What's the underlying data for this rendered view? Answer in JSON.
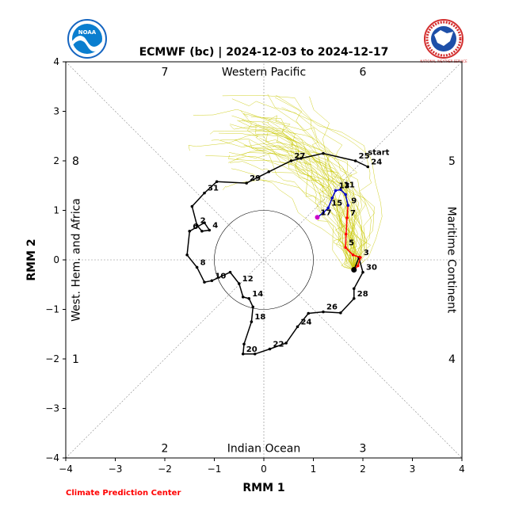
{
  "chart_data": {
    "type": "line",
    "title": "ECMWF (bc) | 2024-12-03 to 2024-12-17",
    "xlabel": "RMM 1",
    "ylabel": "RMM 2",
    "xlim": [
      -4,
      4
    ],
    "ylim": [
      -4,
      4
    ],
    "ticks": [
      "−4",
      "−3",
      "−2",
      "−1",
      "0",
      "1",
      "2",
      "3",
      "4"
    ],
    "phase_numbers": [
      {
        "label": "7",
        "x": -2,
        "y": 3.8
      },
      {
        "label": "6",
        "x": 2,
        "y": 3.8
      },
      {
        "label": "8",
        "x": -3.8,
        "y": 2
      },
      {
        "label": "5",
        "x": 3.8,
        "y": 2
      },
      {
        "label": "1",
        "x": -3.8,
        "y": -2
      },
      {
        "label": "4",
        "x": 3.8,
        "y": -2
      },
      {
        "label": "2",
        "x": -2,
        "y": -3.8
      },
      {
        "label": "3",
        "x": 2,
        "y": -3.8
      }
    ],
    "regions": {
      "top": "Western Pacific",
      "bottom": "Indian Ocean",
      "left": "West. Hem. and Africa",
      "right": "Maritime Continent"
    },
    "footer": "Climate Prediction Center",
    "start_label": "start",
    "observed": [
      {
        "x": 2.1,
        "y": 1.88,
        "label": "24"
      },
      {
        "x": 1.85,
        "y": 2.0,
        "label": "25"
      },
      {
        "x": 1.2,
        "y": 2.15,
        "label": ""
      },
      {
        "x": 0.75,
        "y": 2.05,
        "label": ""
      },
      {
        "x": 0.55,
        "y": 2.0,
        "label": "27"
      },
      {
        "x": 0.1,
        "y": 1.78,
        "label": ""
      },
      {
        "x": -0.35,
        "y": 1.55,
        "label": "29"
      },
      {
        "x": -0.95,
        "y": 1.58,
        "label": ""
      },
      {
        "x": -1.2,
        "y": 1.35,
        "label": "31"
      },
      {
        "x": -1.45,
        "y": 1.08,
        "label": ""
      },
      {
        "x": -1.35,
        "y": 0.7,
        "label": "2"
      },
      {
        "x": -1.25,
        "y": 0.58,
        "label": ""
      },
      {
        "x": -1.1,
        "y": 0.6,
        "label": "4"
      },
      {
        "x": -1.2,
        "y": 0.75,
        "label": ""
      },
      {
        "x": -1.5,
        "y": 0.58,
        "label": "6"
      },
      {
        "x": -1.55,
        "y": 0.1,
        "label": ""
      },
      {
        "x": -1.35,
        "y": -0.15,
        "label": "8"
      },
      {
        "x": -1.2,
        "y": -0.45,
        "label": ""
      },
      {
        "x": -1.05,
        "y": -0.42,
        "label": "10"
      },
      {
        "x": -0.68,
        "y": -0.25,
        "label": ""
      },
      {
        "x": -0.5,
        "y": -0.48,
        "label": "12"
      },
      {
        "x": -0.42,
        "y": -0.75,
        "label": ""
      },
      {
        "x": -0.3,
        "y": -0.78,
        "label": "14"
      },
      {
        "x": -0.22,
        "y": -0.95,
        "label": ""
      },
      {
        "x": -0.25,
        "y": -1.25,
        "label": "18"
      },
      {
        "x": -0.4,
        "y": -1.7,
        "label": ""
      },
      {
        "x": -0.42,
        "y": -1.9,
        "label": "20"
      },
      {
        "x": -0.18,
        "y": -1.9,
        "label": ""
      },
      {
        "x": 0.12,
        "y": -1.8,
        "label": "22"
      },
      {
        "x": 0.45,
        "y": -1.68,
        "label": ""
      },
      {
        "x": 0.68,
        "y": -1.35,
        "label": "24"
      },
      {
        "x": 0.9,
        "y": -1.08,
        "label": ""
      },
      {
        "x": 1.2,
        "y": -1.05,
        "label": "26"
      },
      {
        "x": 1.55,
        "y": -1.07,
        "label": ""
      },
      {
        "x": 1.82,
        "y": -0.78,
        "label": "28"
      },
      {
        "x": 1.82,
        "y": -0.58,
        "label": ""
      },
      {
        "x": 2.0,
        "y": -0.25,
        "label": "30"
      },
      {
        "x": 1.92,
        "y": 0.05,
        "label": ""
      },
      {
        "x": 1.82,
        "y": -0.2,
        "label": ""
      }
    ],
    "forecast_red": [
      {
        "x": 1.82,
        "y": -0.2,
        "label": ""
      },
      {
        "x": 1.9,
        "y": -0.12,
        "label": ""
      },
      {
        "x": 1.95,
        "y": 0.05,
        "label": "3"
      },
      {
        "x": 1.8,
        "y": 0.1,
        "label": ""
      },
      {
        "x": 1.65,
        "y": 0.25,
        "label": "5"
      },
      {
        "x": 1.66,
        "y": 0.52,
        "label": ""
      },
      {
        "x": 1.68,
        "y": 0.85,
        "label": "7"
      },
      {
        "x": 1.7,
        "y": 1.1,
        "label": ""
      }
    ],
    "forecast_blue": [
      {
        "x": 1.7,
        "y": 1.1,
        "label": "9"
      },
      {
        "x": 1.65,
        "y": 1.32,
        "label": ""
      },
      {
        "x": 1.55,
        "y": 1.42,
        "label": "11"
      },
      {
        "x": 1.45,
        "y": 1.4,
        "label": "13"
      },
      {
        "x": 1.38,
        "y": 1.25,
        "label": ""
      },
      {
        "x": 1.3,
        "y": 1.05,
        "label": "15"
      },
      {
        "x": 1.2,
        "y": 0.95,
        "label": ""
      },
      {
        "x": 1.08,
        "y": 0.86,
        "label": "17"
      }
    ],
    "colors": {
      "observed": "#000000",
      "forecast_red": "#ff0000",
      "forecast_blue": "#0000cc",
      "ensemble": "#c8c800",
      "footer": "#ff0000"
    }
  },
  "logos": {
    "left_logo_text": "NOAA",
    "right_logo_text": "NATIONAL WEATHER SERVICE"
  }
}
